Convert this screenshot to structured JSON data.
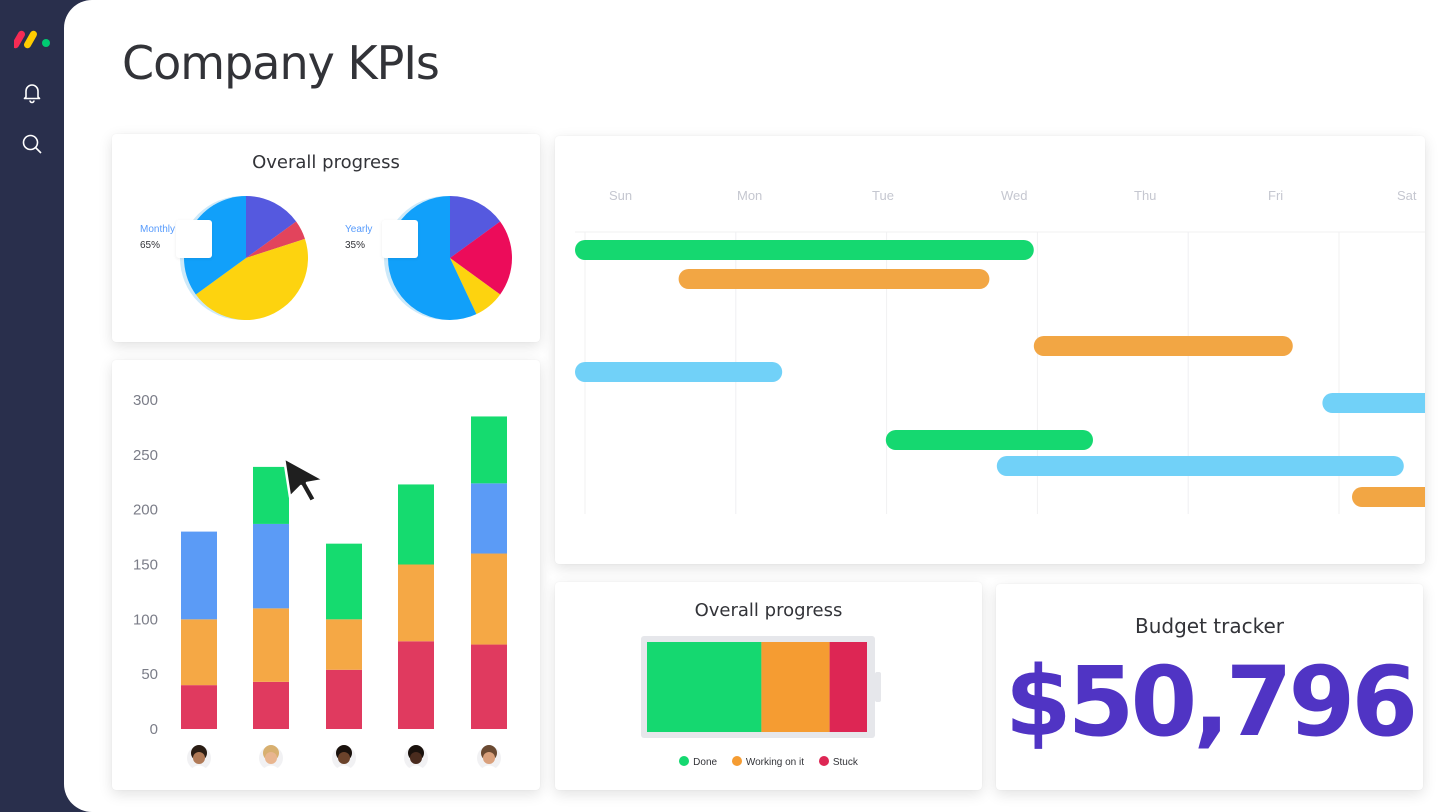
{
  "page": {
    "title": "Company KPIs"
  },
  "sidebar": {
    "icons": [
      "monday-logo",
      "bell-icon",
      "search-icon"
    ]
  },
  "progress_pies": {
    "title": "Overall progress",
    "monthly": {
      "label": "Monthly",
      "percent": "65%",
      "colors": [
        "#5559df",
        "#e2445c",
        "#fdd30f",
        "#11a0fa"
      ],
      "values": [
        15,
        5,
        45,
        35
      ]
    },
    "yearly": {
      "label": "Yearly",
      "percent": "35%",
      "colors": [
        "#5559df",
        "#ec0c5a",
        "#fdd30f",
        "#11a0fa"
      ],
      "values": [
        15,
        20,
        8,
        57
      ]
    }
  },
  "bar_chart": {
    "chart_data": {
      "type": "bar",
      "stacked": true,
      "categories": [
        "",
        "",
        "",
        "",
        ""
      ],
      "ylim": [
        0,
        300
      ],
      "yticks": [
        0,
        50,
        100,
        150,
        200,
        250,
        300
      ],
      "series": [
        {
          "color": "#e03a5f",
          "values": [
            40,
            43,
            54,
            80,
            77
          ]
        },
        {
          "color": "#f5a845",
          "values": [
            60,
            67,
            46,
            70,
            83
          ]
        },
        {
          "color": "#5b9bf6",
          "values": [
            80,
            77,
            0,
            0,
            64
          ]
        },
        {
          "color": "#15db6f",
          "values": [
            0,
            52,
            69,
            73,
            61
          ]
        }
      ]
    }
  },
  "timeline": {
    "days": [
      "Sun",
      "Mon",
      "Tue",
      "Wed",
      "Thu",
      "Fri",
      "Sat"
    ],
    "bars": [
      {
        "color": "#15d870",
        "start": 0,
        "end": 3.1
      },
      {
        "color": "#f2a644",
        "start": 0.7,
        "end": 2.8
      },
      {
        "color": "#f2a644",
        "start": 3.1,
        "end": 4.85
      },
      {
        "color": "#71d1f8",
        "start": 0,
        "end": 1.4
      },
      {
        "color": "#71d1f8",
        "start": 5.05,
        "end": 6.45
      },
      {
        "color": "#15d870",
        "start": 2.1,
        "end": 3.5
      },
      {
        "color": "#71d1f8",
        "start": 2.85,
        "end": 5.6
      },
      {
        "color": "#f2a644",
        "start": 5.25,
        "end": 6.2
      }
    ]
  },
  "battery": {
    "title": "Overall progress",
    "segments": [
      {
        "label": "Done",
        "color": "#15d870",
        "value": 52
      },
      {
        "label": "Working on it",
        "color": "#f59c32",
        "value": 31
      },
      {
        "label": "Stuck",
        "color": "#dd2654",
        "value": 17
      }
    ]
  },
  "budget": {
    "title": "Budget tracker",
    "amount": "$50,796"
  }
}
